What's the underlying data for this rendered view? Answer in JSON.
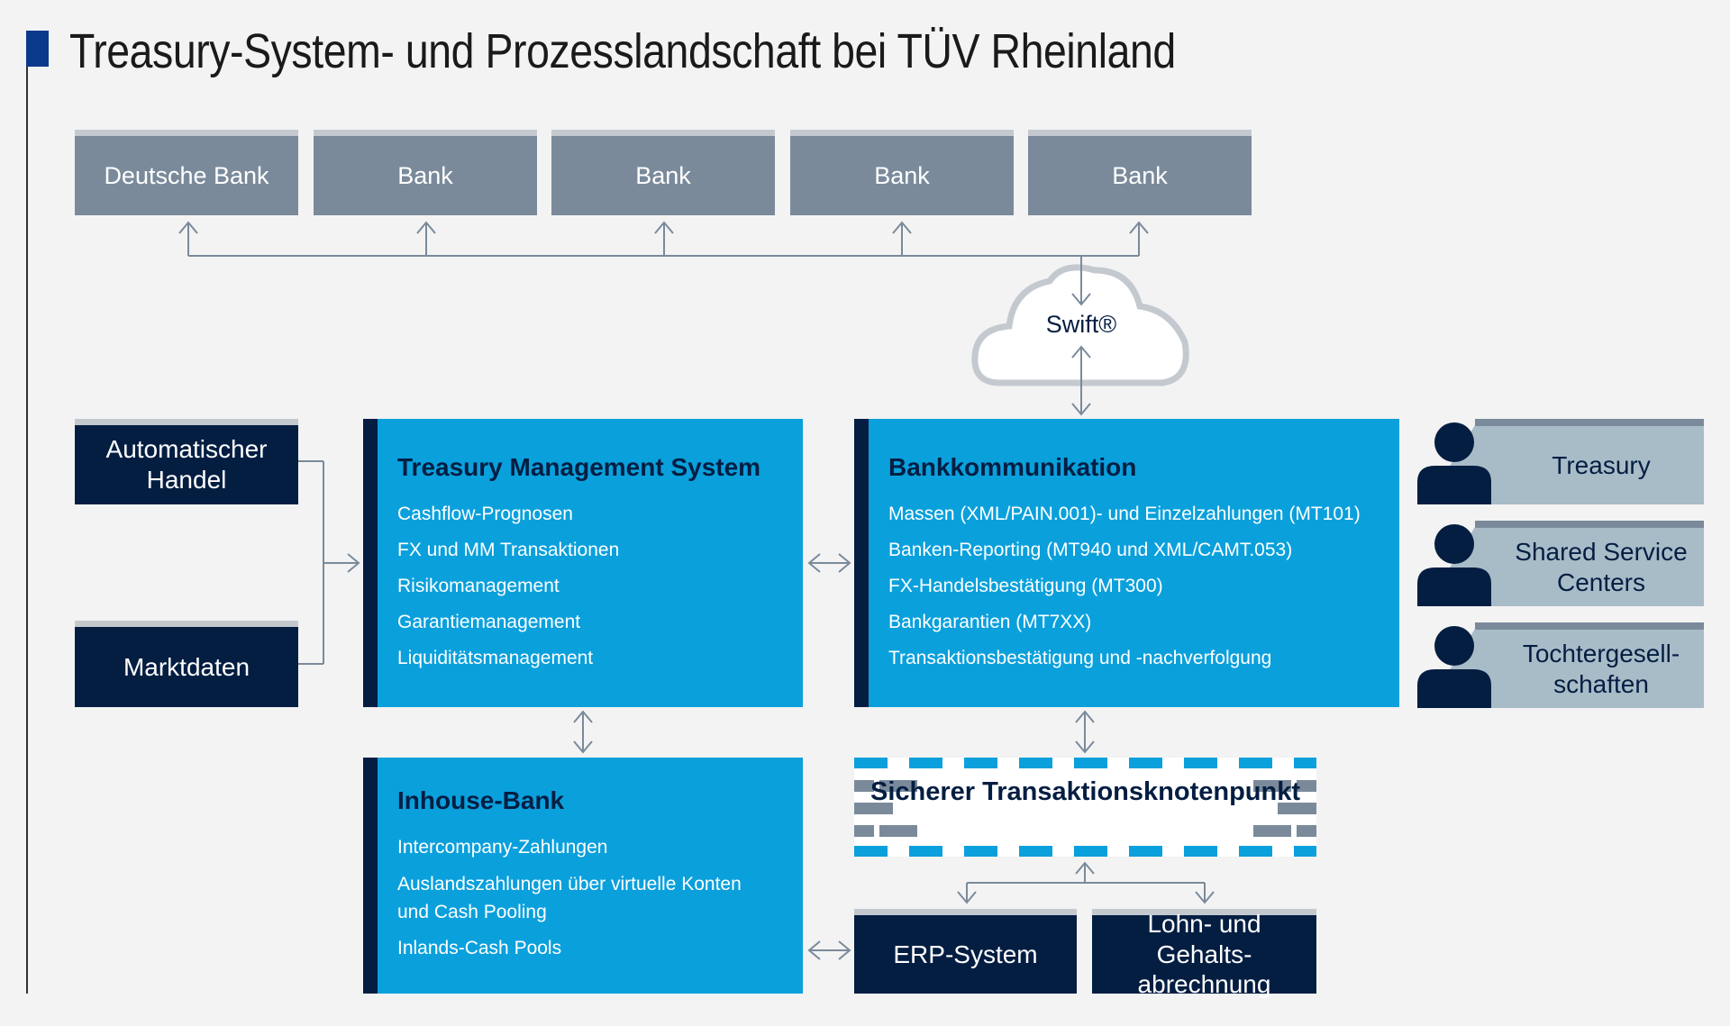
{
  "title": "Treasury-System- und Prozesslandschaft bei TÜV Rheinland",
  "banks": [
    "Deutsche Bank",
    "Bank",
    "Bank",
    "Bank",
    "Bank"
  ],
  "swift": "Swift®",
  "inputs": [
    "Automatischer Handel",
    "Marktdaten"
  ],
  "tms": {
    "title": "Treasury Management System",
    "items": [
      "Cashflow-Prognosen",
      "FX und MM Transaktionen",
      "Risikomanagement",
      "Garantiemanagement",
      "Liquiditätsmanagement"
    ]
  },
  "bank_comm": {
    "title": "Bankkommunikation",
    "items": [
      "Massen (XML/PAIN.001)- und Einzelzahlungen (MT101)",
      "Banken-Reporting (MT940 und XML/CAMT.053)",
      "FX-Handelsbestätigung (MT300)",
      "Bankgarantien (MT7XX)",
      "Transaktionsbestätigung und -nachverfolgung"
    ]
  },
  "users": [
    "Treasury",
    "Shared Service Centers",
    "Tochtergesell-schaften"
  ],
  "inhouse": {
    "title": "Inhouse-Bank",
    "items": [
      "Intercompany-Zahlungen",
      "Auslandszahlungen über virtuelle Konten und Cash Pooling",
      "Inlands-Cash Pools"
    ]
  },
  "secure_node": "Sicherer Transaktionsknotenpunkt",
  "erp": "ERP-System",
  "payroll": "Lohn- und Gehalts-abrechnung",
  "colors": {
    "brand_blue": "#0aa0dc",
    "navy": "#041e42",
    "bank_grey": "#7a8a9b",
    "user_grey": "#a8bcc8"
  }
}
